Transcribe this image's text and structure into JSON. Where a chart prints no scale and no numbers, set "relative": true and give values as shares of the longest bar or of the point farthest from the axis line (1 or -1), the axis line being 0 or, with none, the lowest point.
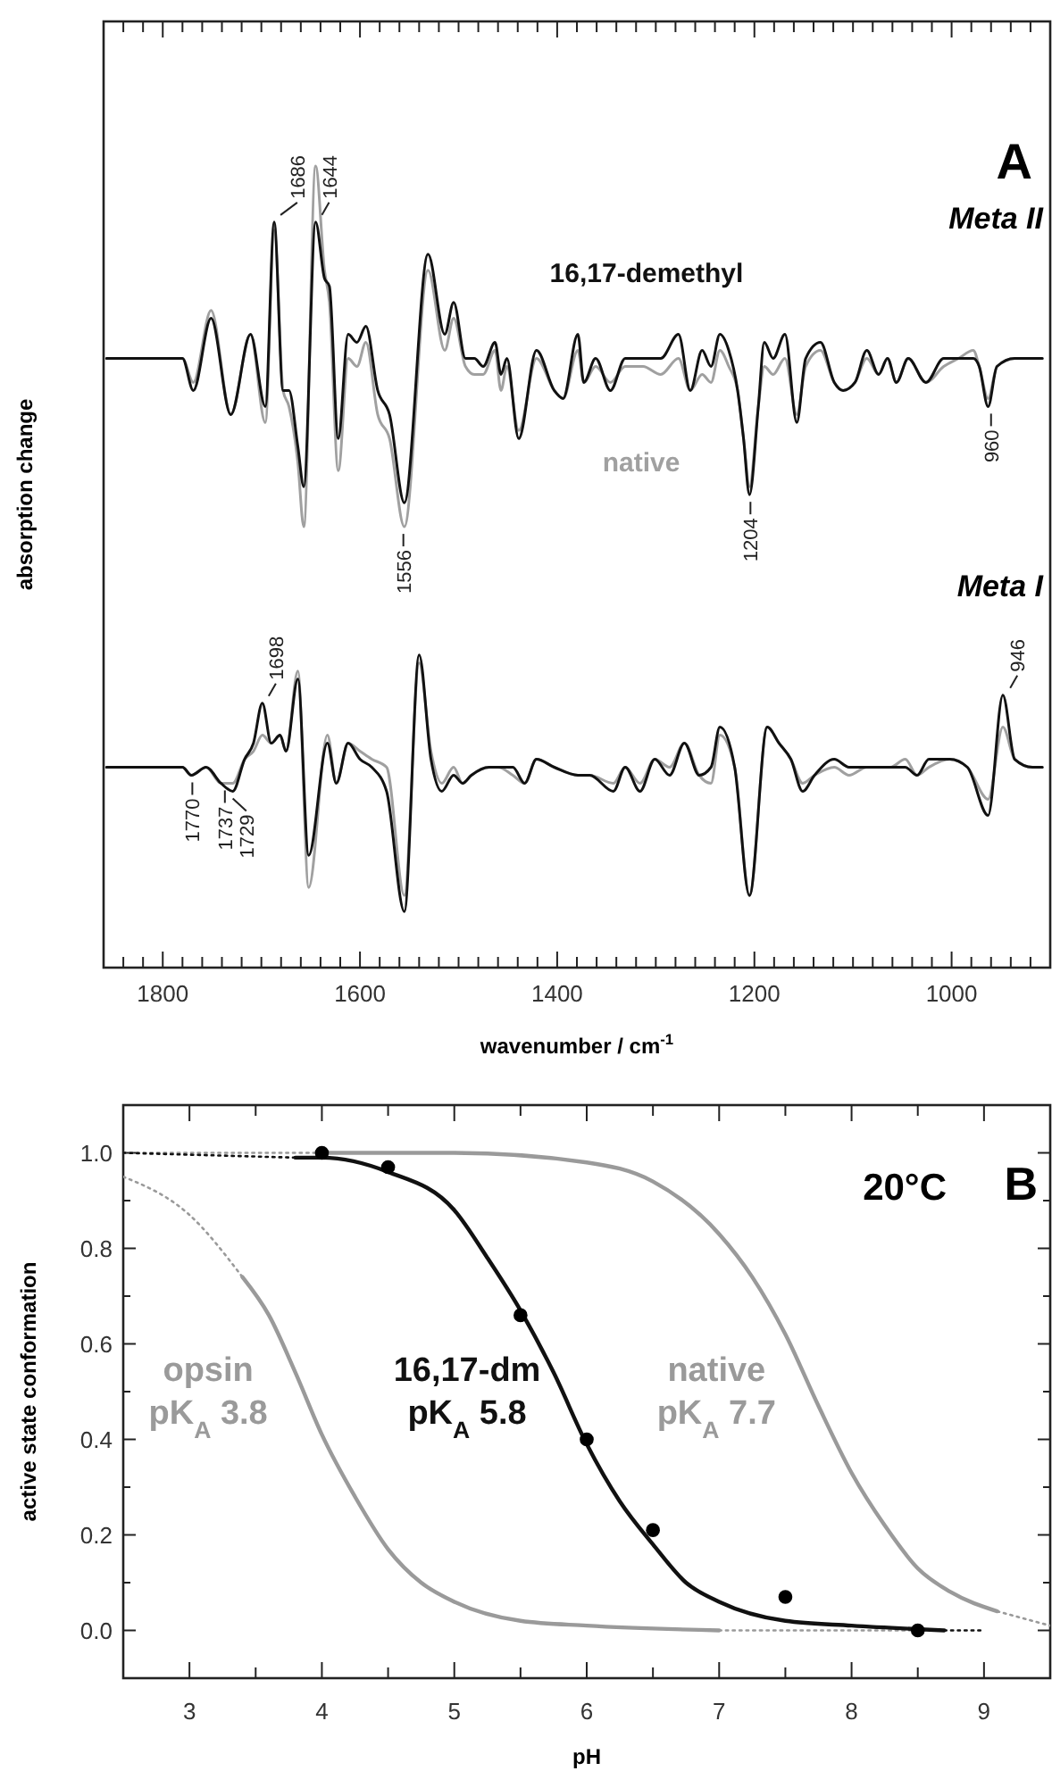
{
  "chart_data": [
    {
      "type": "line",
      "relative": true,
      "xlabel": "wavenumber / cm$^{-1}$",
      "ylabel": "absorption change",
      "xlim": [
        1860,
        900
      ],
      "xticks": [
        {
          "value": 1840,
          "label": null
        },
        {
          "value": 1820,
          "label": null
        },
        1800,
        {
          "value": 1780,
          "label": null
        },
        {
          "value": 1760,
          "label": null
        },
        {
          "value": 1740,
          "label": null
        },
        {
          "value": 1720,
          "label": null
        },
        {
          "value": 1700,
          "label": null
        },
        {
          "value": 1680,
          "label": null
        },
        {
          "value": 1660,
          "label": null
        },
        {
          "value": 1640,
          "label": null
        },
        {
          "value": 1620,
          "label": null
        },
        1600,
        {
          "value": 1580,
          "label": null
        },
        {
          "value": 1560,
          "label": null
        },
        {
          "value": 1540,
          "label": null
        },
        {
          "value": 1520,
          "label": null
        },
        {
          "value": 1500,
          "label": null
        },
        {
          "value": 1480,
          "label": null
        },
        {
          "value": 1460,
          "label": null
        },
        {
          "value": 1440,
          "label": null
        },
        {
          "value": 1420,
          "label": null
        },
        1400,
        {
          "value": 1380,
          "label": null
        },
        {
          "value": 1360,
          "label": null
        },
        {
          "value": 1340,
          "label": null
        },
        {
          "value": 1320,
          "label": null
        },
        {
          "value": 1300,
          "label": null
        },
        {
          "value": 1280,
          "label": null
        },
        {
          "value": 1260,
          "label": null
        },
        {
          "value": 1240,
          "label": null
        },
        {
          "value": 1220,
          "label": null
        },
        1200,
        {
          "value": 1180,
          "label": null
        },
        {
          "value": 1160,
          "label": null
        },
        {
          "value": 1140,
          "label": null
        },
        {
          "value": 1120,
          "label": null
        },
        {
          "value": 1100,
          "label": null
        },
        {
          "value": 1080,
          "label": null
        },
        {
          "value": 1060,
          "label": null
        },
        {
          "value": 1040,
          "label": null
        },
        {
          "value": 1020,
          "label": null
        },
        1000,
        {
          "value": 980,
          "label": null
        },
        {
          "value": 960,
          "label": null
        },
        {
          "value": 940,
          "label": null
        },
        {
          "value": 920,
          "label": null
        }
      ],
      "annotations": [
        "A",
        "Meta II",
        "Meta I",
        {
          "text": "1686",
          "x": 1686,
          "y": 0.93
        },
        {
          "text": "1644",
          "x": 1644,
          "y": 0.93
        },
        {
          "text": "1204",
          "x": 1204,
          "y": 0.59
        },
        {
          "text": "960",
          "x": 960,
          "y": 0.7
        },
        {
          "text": "1556",
          "x": 1556,
          "y": 0.55
        },
        {
          "text": "1698",
          "x": 1698,
          "y": 0.33
        },
        {
          "text": "946",
          "x": 946,
          "y": 0.34
        },
        {
          "text": "1770",
          "x": 1770,
          "y": 0.24
        },
        {
          "text": "1737",
          "x": 1737,
          "y": 0.23
        },
        {
          "text": "1729",
          "x": 1729,
          "y": 0.22
        }
      ],
      "series": [
        {
          "name": "native",
          "color": "#a0a0a0",
          "x": [
            1857,
            1780,
            1769,
            1751,
            1731,
            1711,
            1696,
            1687,
            1678,
            1672,
            1663,
            1657,
            1645,
            1636,
            1631,
            1622,
            1612,
            1603,
            1594,
            1582,
            1570,
            1555,
            1531,
            1514,
            1505,
            1493,
            1484,
            1475,
            1463,
            1457,
            1451,
            1439,
            1421,
            1403,
            1394,
            1379,
            1373,
            1361,
            1346,
            1331,
            1313,
            1295,
            1277,
            1265,
            1253,
            1244,
            1235,
            1226,
            1217,
            1211,
            1205,
            1196,
            1190,
            1181,
            1169,
            1157,
            1148,
            1133,
            1119,
            1110,
            1098,
            1086,
            1074,
            1065,
            1056,
            1044,
            1026,
            1008,
            993,
            978,
            972,
            963,
            954,
            936,
            908
          ],
          "values": [
            0.76,
            0.76,
            0.73,
            0.82,
            0.69,
            0.79,
            0.68,
            0.92,
            0.72,
            0.7,
            0.63,
            0.55,
            1.0,
            0.87,
            0.83,
            0.62,
            0.76,
            0.75,
            0.78,
            0.69,
            0.66,
            0.55,
            0.87,
            0.77,
            0.81,
            0.75,
            0.74,
            0.74,
            0.77,
            0.72,
            0.75,
            0.67,
            0.76,
            0.72,
            0.71,
            0.77,
            0.73,
            0.75,
            0.73,
            0.75,
            0.75,
            0.74,
            0.76,
            0.72,
            0.74,
            0.73,
            0.77,
            0.75,
            0.72,
            0.66,
            0.6,
            0.7,
            0.75,
            0.74,
            0.76,
            0.69,
            0.75,
            0.77,
            0.73,
            0.72,
            0.73,
            0.76,
            0.74,
            0.76,
            0.73,
            0.76,
            0.73,
            0.75,
            0.76,
            0.77,
            0.75,
            0.71,
            0.75,
            0.76,
            0.76
          ]
        },
        {
          "name": "16,17-demethyl",
          "color": "#111111",
          "x": [
            1857,
            1780,
            1769,
            1751,
            1731,
            1711,
            1696,
            1687,
            1678,
            1672,
            1663,
            1657,
            1645,
            1636,
            1631,
            1622,
            1612,
            1603,
            1594,
            1582,
            1570,
            1555,
            1531,
            1514,
            1505,
            1493,
            1484,
            1475,
            1463,
            1457,
            1451,
            1439,
            1421,
            1403,
            1394,
            1379,
            1373,
            1361,
            1346,
            1331,
            1313,
            1295,
            1277,
            1265,
            1253,
            1244,
            1235,
            1226,
            1217,
            1211,
            1205,
            1196,
            1190,
            1181,
            1169,
            1157,
            1148,
            1133,
            1119,
            1110,
            1098,
            1086,
            1074,
            1065,
            1056,
            1044,
            1026,
            1008,
            993,
            978,
            972,
            963,
            954,
            936,
            908
          ],
          "values": [
            0.76,
            0.76,
            0.72,
            0.81,
            0.69,
            0.79,
            0.7,
            0.93,
            0.72,
            0.72,
            0.65,
            0.6,
            0.93,
            0.86,
            0.85,
            0.66,
            0.79,
            0.78,
            0.8,
            0.72,
            0.69,
            0.58,
            0.89,
            0.79,
            0.83,
            0.76,
            0.76,
            0.75,
            0.78,
            0.74,
            0.76,
            0.66,
            0.77,
            0.72,
            0.71,
            0.79,
            0.73,
            0.76,
            0.72,
            0.76,
            0.76,
            0.76,
            0.79,
            0.72,
            0.77,
            0.75,
            0.79,
            0.77,
            0.72,
            0.66,
            0.59,
            0.7,
            0.78,
            0.76,
            0.79,
            0.68,
            0.76,
            0.78,
            0.73,
            0.72,
            0.73,
            0.77,
            0.74,
            0.76,
            0.73,
            0.76,
            0.73,
            0.76,
            0.76,
            0.76,
            0.75,
            0.7,
            0.75,
            0.76,
            0.76
          ]
        },
        {
          "color": "#a0a0a0",
          "x": [
            1857,
            1780,
            1771,
            1756,
            1741,
            1729,
            1717,
            1708,
            1699,
            1690,
            1681,
            1675,
            1663,
            1652,
            1633,
            1624,
            1612,
            1600,
            1588,
            1573,
            1555,
            1540,
            1528,
            1517,
            1505,
            1496,
            1487,
            1469,
            1460,
            1445,
            1433,
            1421,
            1403,
            1379,
            1367,
            1343,
            1331,
            1316,
            1301,
            1286,
            1271,
            1256,
            1244,
            1235,
            1220,
            1205,
            1187,
            1175,
            1163,
            1151,
            1139,
            1119,
            1104,
            1086,
            1062,
            1047,
            1035,
            1023,
            1002,
            984,
            963,
            948,
            936,
            918,
            908
          ],
          "values": [
            0.25,
            0.25,
            0.24,
            0.25,
            0.23,
            0.23,
            0.26,
            0.27,
            0.29,
            0.28,
            0.29,
            0.27,
            0.37,
            0.1,
            0.29,
            0.23,
            0.28,
            0.27,
            0.26,
            0.25,
            0.09,
            0.38,
            0.27,
            0.23,
            0.25,
            0.23,
            0.24,
            0.25,
            0.25,
            0.24,
            0.23,
            0.26,
            0.25,
            0.24,
            0.24,
            0.23,
            0.25,
            0.23,
            0.26,
            0.25,
            0.28,
            0.24,
            0.23,
            0.29,
            0.25,
            0.09,
            0.3,
            0.28,
            0.26,
            0.23,
            0.24,
            0.25,
            0.24,
            0.25,
            0.25,
            0.26,
            0.24,
            0.25,
            0.26,
            0.25,
            0.21,
            0.3,
            0.26,
            0.25,
            0.25
          ]
        },
        {
          "color": "#111111",
          "x": [
            1857,
            1780,
            1771,
            1756,
            1741,
            1729,
            1717,
            1708,
            1699,
            1690,
            1681,
            1675,
            1663,
            1652,
            1633,
            1624,
            1612,
            1600,
            1588,
            1573,
            1555,
            1540,
            1528,
            1517,
            1505,
            1496,
            1487,
            1469,
            1460,
            1445,
            1433,
            1421,
            1403,
            1379,
            1367,
            1343,
            1331,
            1316,
            1301,
            1286,
            1271,
            1256,
            1244,
            1235,
            1220,
            1205,
            1187,
            1175,
            1163,
            1151,
            1139,
            1119,
            1104,
            1086,
            1062,
            1047,
            1035,
            1023,
            1002,
            984,
            963,
            948,
            936,
            918,
            908
          ],
          "values": [
            0.25,
            0.25,
            0.24,
            0.25,
            0.23,
            0.22,
            0.26,
            0.28,
            0.33,
            0.28,
            0.29,
            0.27,
            0.36,
            0.14,
            0.28,
            0.23,
            0.28,
            0.26,
            0.25,
            0.22,
            0.07,
            0.39,
            0.26,
            0.22,
            0.24,
            0.23,
            0.24,
            0.25,
            0.25,
            0.25,
            0.23,
            0.26,
            0.25,
            0.24,
            0.24,
            0.22,
            0.25,
            0.22,
            0.26,
            0.24,
            0.28,
            0.24,
            0.25,
            0.3,
            0.25,
            0.09,
            0.3,
            0.28,
            0.26,
            0.22,
            0.24,
            0.26,
            0.25,
            0.25,
            0.25,
            0.25,
            0.24,
            0.26,
            0.26,
            0.25,
            0.19,
            0.34,
            0.26,
            0.25,
            0.25
          ]
        }
      ]
    },
    {
      "type": "line",
      "xlabel": "pH",
      "ylabel": "active state conformation",
      "xlim": [
        2.5,
        9.5
      ],
      "ylim": [
        -0.1,
        1.1
      ],
      "xticks": [
        3,
        {
          "value": 3.5,
          "label": null
        },
        4,
        {
          "value": 4.5,
          "label": null
        },
        5,
        {
          "value": 5.5,
          "label": null
        },
        6,
        {
          "value": 6.5,
          "label": null
        },
        7,
        {
          "value": 7.5,
          "label": null
        },
        8,
        {
          "value": 8.5,
          "label": null
        },
        9
      ],
      "yticks": [
        {
          "value": 0,
          "label": "0.0"
        },
        {
          "value": 0.1,
          "label": null
        },
        {
          "value": 0.2,
          "label": "0.2"
        },
        {
          "value": 0.3,
          "label": null
        },
        {
          "value": 0.4,
          "label": "0.4"
        },
        {
          "value": 0.5,
          "label": null
        },
        {
          "value": 0.6,
          "label": "0.6"
        },
        {
          "value": 0.7,
          "label": null
        },
        {
          "value": 0.8,
          "label": "0.8"
        },
        {
          "value": 0.9,
          "label": null
        },
        {
          "value": 1.0,
          "label": "1.0"
        }
      ],
      "annotations": [
        "20°C",
        "B"
      ],
      "series": [
        {
          "name": "opsin pK$_{A}$  3.8",
          "color": "#9a9a9a",
          "x": [
            3.4,
            3.6,
            3.8,
            4.0,
            4.25,
            4.5,
            4.75,
            5,
            5.5,
            6,
            7
          ],
          "values": [
            0.74,
            0.66,
            0.54,
            0.41,
            0.28,
            0.17,
            0.1,
            0.06,
            0.02,
            0.01,
            0.0
          ]
        },
        {
          "line_style": "dotted",
          "color": "#9a9a9a",
          "x": [
            2.5,
            3.0,
            3.4
          ],
          "values": [
            0.95,
            0.87,
            0.74
          ]
        },
        {
          "line_style": "dotted",
          "color": "#9a9a9a",
          "x": [
            7.0,
            8.7
          ],
          "values": [
            0.0,
            0.0
          ]
        },
        {
          "name": "native pK$_{A}$  7.7",
          "color": "#9a9a9a",
          "x": [
            4,
            5,
            6,
            6.5,
            7,
            7.25,
            7.5,
            7.75,
            8,
            8.25,
            8.5,
            8.75,
            9.1
          ],
          "values": [
            1.0,
            1.0,
            0.98,
            0.94,
            0.83,
            0.74,
            0.62,
            0.47,
            0.33,
            0.22,
            0.13,
            0.08,
            0.04
          ]
        },
        {
          "line_style": "dotted",
          "color": "#9a9a9a",
          "x": [
            2.5,
            4.0
          ],
          "values": [
            1.0,
            1.0
          ]
        },
        {
          "line_style": "dotted",
          "color": "#9a9a9a",
          "x": [
            9.1,
            9.5
          ],
          "values": [
            0.04,
            0.01
          ]
        },
        {
          "name": "16,17-dm pK$_{A}$  5.8",
          "color": "#111111",
          "x": [
            3.8,
            4,
            4.5,
            5,
            5.25,
            5.5,
            5.75,
            6,
            6.25,
            6.5,
            6.75,
            7,
            7.5,
            8,
            8.7
          ],
          "values": [
            0.99,
            0.99,
            0.96,
            0.88,
            0.78,
            0.67,
            0.54,
            0.39,
            0.27,
            0.18,
            0.1,
            0.06,
            0.02,
            0.01,
            0.0
          ]
        },
        {
          "line_style": "dotted",
          "color": "#111111",
          "x": [
            2.5,
            3.8
          ],
          "values": [
            1.0,
            0.99
          ]
        },
        {
          "line_style": "dotted",
          "color": "#111111",
          "x": [
            8.7,
            9.0
          ],
          "values": [
            0.0,
            0.0
          ]
        },
        {
          "type": "scatter",
          "marker": "circle",
          "color": "#000000",
          "x": [
            4,
            4.5,
            5.5,
            6,
            6.5,
            7.5,
            8.5
          ],
          "values": [
            1.0,
            0.97,
            0.66,
            0.4,
            0.21,
            0.07,
            0.0
          ]
        }
      ]
    }
  ]
}
